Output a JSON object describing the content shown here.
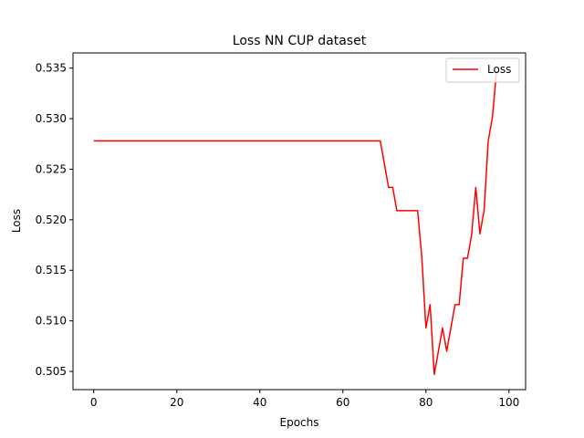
{
  "chart_data": {
    "type": "line",
    "title": "Loss NN CUP dataset",
    "xlabel": "Epochs",
    "ylabel": "Loss",
    "xlim": [
      -5,
      104
    ],
    "ylim": [
      0.5032,
      0.5365
    ],
    "xticks": [
      0,
      20,
      40,
      60,
      80,
      100
    ],
    "xtick_labels": [
      "0",
      "20",
      "40",
      "60",
      "80",
      "100"
    ],
    "yticks": [
      0.505,
      0.51,
      0.515,
      0.52,
      0.525,
      0.53,
      0.535
    ],
    "ytick_labels": [
      "0.505",
      "0.510",
      "0.515",
      "0.520",
      "0.525",
      "0.530",
      "0.535"
    ],
    "grid": false,
    "legend_position": "top-right",
    "series": [
      {
        "name": "Loss",
        "color": "#ff0000",
        "x": [
          0,
          69,
          70,
          71,
          72,
          73,
          74,
          75,
          76,
          77,
          78,
          79,
          80,
          81,
          82,
          83,
          84,
          85,
          86,
          87,
          88,
          89,
          90,
          91,
          92,
          93,
          94,
          95,
          96,
          97
        ],
        "y": [
          0.5278,
          0.5278,
          0.5255,
          0.5232,
          0.5232,
          0.5209,
          0.5209,
          0.5209,
          0.5209,
          0.5209,
          0.5209,
          0.5163,
          0.5093,
          0.5116,
          0.5047,
          0.507,
          0.5093,
          0.507,
          0.5093,
          0.5116,
          0.5116,
          0.5162,
          0.5162,
          0.5185,
          0.5232,
          0.5186,
          0.5209,
          0.5278,
          0.5301,
          0.5347
        ]
      }
    ]
  }
}
